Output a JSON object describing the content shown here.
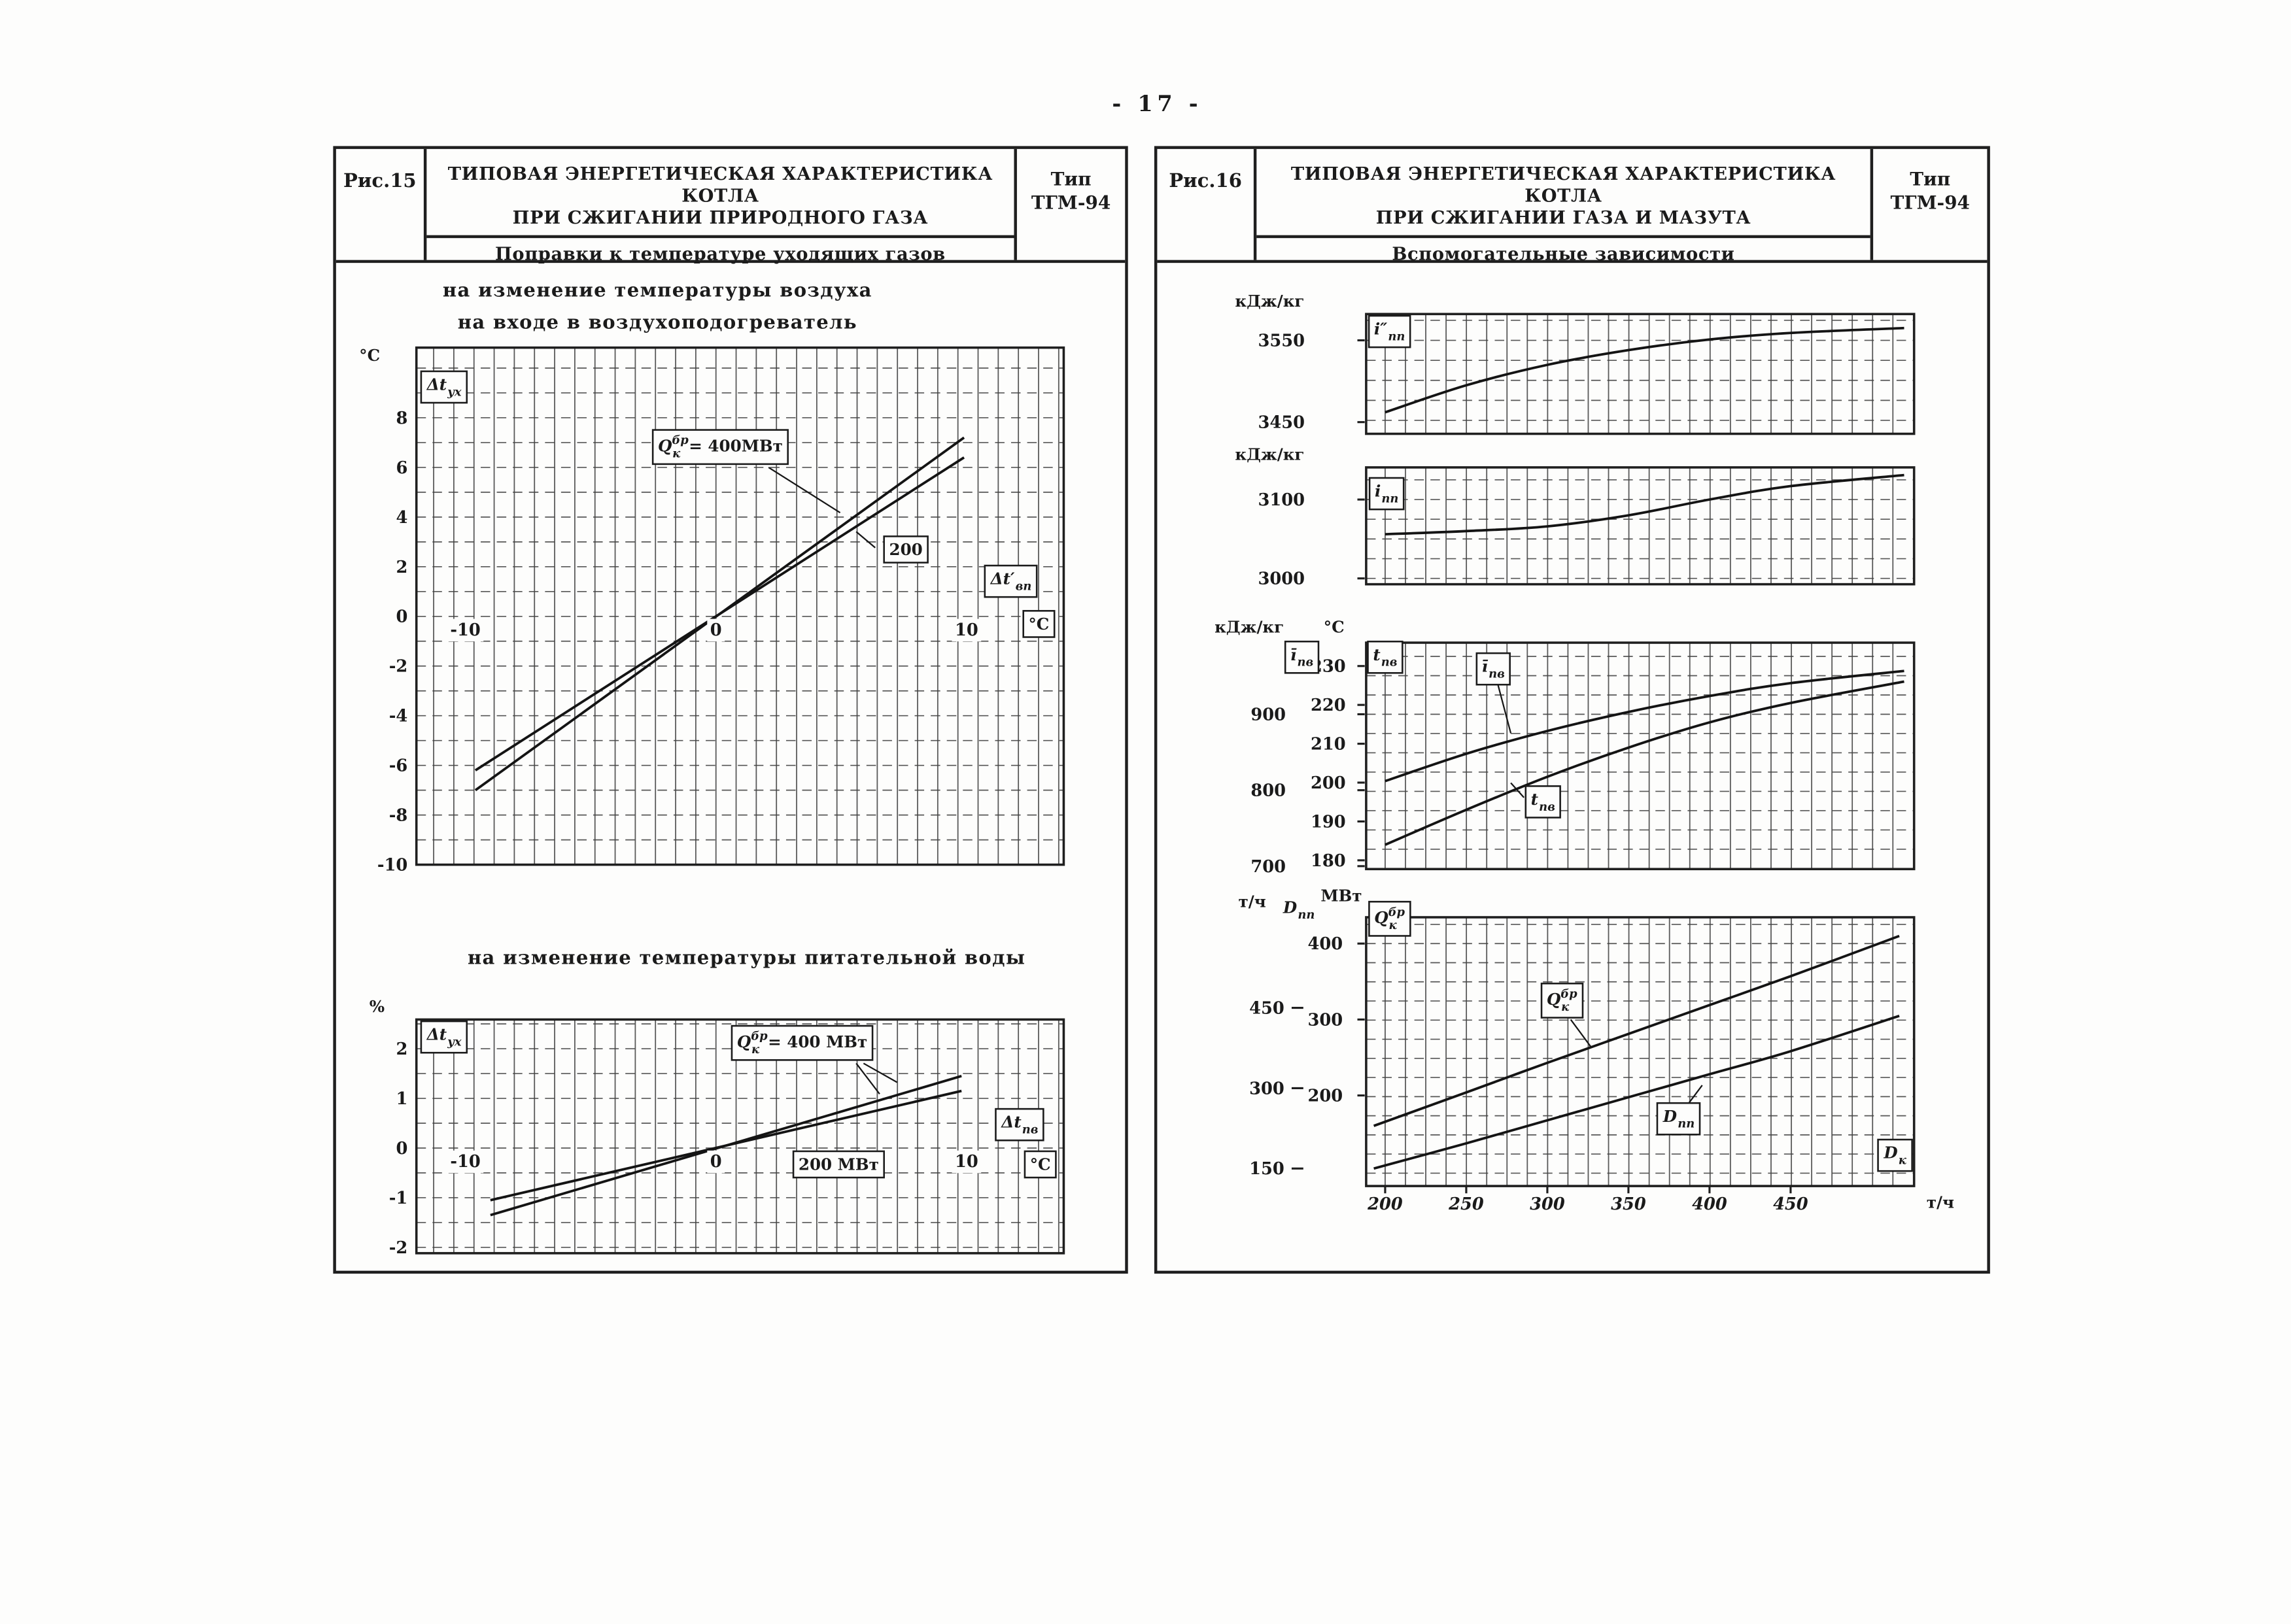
{
  "page": {
    "number": "- 17 -"
  },
  "figures": [
    {
      "id": "fig15",
      "label": "Рис.15",
      "title1": "ТИПОВАЯ ЭНЕРГЕТИЧЕСКАЯ ХАРАКТЕРИСТИКА КОТЛА",
      "title2": "ПРИ СЖИГАНИИ ПРИРОДНОГО ГАЗА",
      "subtitle": "Поправки к температуре уходящих газов",
      "type_label": "Тип",
      "type_value": "ТГМ-94",
      "section_titles": [
        "на изменение температуры воздуха",
        "на входе в воздухоподогреватель",
        "на изменение температуры питательной воды"
      ]
    },
    {
      "id": "fig16",
      "label": "Рис.16",
      "title1": "ТИПОВАЯ ЭНЕРГЕТИЧЕСКАЯ ХАРАКТЕРИСТИКА КОТЛА",
      "title2": "ПРИ СЖИГАНИИ ГАЗА И МАЗУТА",
      "subtitle": "Вспомогательные зависимости",
      "type_label": "Тип",
      "type_value": "ТГМ-94"
    }
  ],
  "chart_data": [
    {
      "id": "fig15_top",
      "type": "line",
      "title": "на изменение температуры воздуха на входе в воздухоподогреватель",
      "xlabel": "Δt′вп, °C",
      "ylabel": "Δtух, °C",
      "xlim": [
        -11.9,
        13.9
      ],
      "ylim": [
        -10,
        10.8
      ],
      "yticks": [
        8,
        6,
        4,
        2,
        0,
        -2,
        -4,
        -6,
        -8,
        -10
      ],
      "xticks": [
        -10,
        0,
        10
      ],
      "series": [
        {
          "name": "Qк бр = 400 МВт",
          "points": [
            [
              -9.6,
              -7.0
            ],
            [
              9.9,
              7.2
            ]
          ]
        },
        {
          "name": "200 МВт",
          "points": [
            [
              -9.6,
              -6.2
            ],
            [
              9.9,
              6.4
            ]
          ]
        }
      ],
      "annotations": {
        "yunit": {
          "text": "°C"
        },
        "ylab": {
          "text": "Δt",
          "sub": "ух",
          "boxed": true
        },
        "q400": {
          "text": "Q",
          "sup": "бр",
          "sub": "к",
          "suffix": " = 400МВт",
          "boxed": true
        },
        "q200": {
          "text": "200",
          "boxed": true
        },
        "xlab": {
          "text": "Δt′",
          "sub": "вп",
          "boxed": true
        },
        "xunit": {
          "text": "°C",
          "boxed": true
        }
      }
    },
    {
      "id": "fig15_bot",
      "type": "line",
      "title": "на изменение температуры питательной воды",
      "xlabel": "Δtпв, °C",
      "ylabel": "Δtух, %",
      "xlim": [
        -11.9,
        13.9
      ],
      "ylim": [
        -2.6,
        2.6
      ],
      "yticks": [
        2,
        1,
        0,
        -1,
        -2
      ],
      "xticks": [
        -10,
        0,
        10
      ],
      "series": [
        {
          "name": "Qк бр = 400 МВт",
          "points": [
            [
              -9,
              -1.35
            ],
            [
              9.8,
              1.45
            ]
          ]
        },
        {
          "name": "200 МВт",
          "points": [
            [
              -9,
              -1.05
            ],
            [
              9.8,
              1.15
            ]
          ]
        }
      ],
      "annotations": {
        "yunit": {
          "text": "%"
        },
        "ylab": {
          "text": "Δt",
          "sub": "ух",
          "boxed": true
        },
        "q400": {
          "text": "Q",
          "sup": "бр",
          "sub": "к",
          "suffix": " = 400 МВт",
          "boxed": true
        },
        "mw200": {
          "text": "200 МВт",
          "boxed": true
        },
        "xlab": {
          "text": "Δt",
          "sub": "пв",
          "boxed": true
        },
        "xunit": {
          "text": "°C",
          "boxed": true
        }
      }
    },
    {
      "id": "fig16_a",
      "type": "line",
      "xlabel": "Dк, т/ч",
      "ylabel": "i″пп, кДж/кг",
      "xlim": [
        188,
        526
      ],
      "ylim": [
        3435,
        3585
      ],
      "yticks": [
        3550,
        3450
      ],
      "series": [
        {
          "name": "i″пп",
          "smooth": true,
          "points": [
            [
              200,
              3462
            ],
            [
              250,
              3495
            ],
            [
              300,
              3520
            ],
            [
              350,
              3538
            ],
            [
              400,
              3551
            ],
            [
              450,
              3559
            ],
            [
              520,
              3565
            ]
          ]
        }
      ],
      "annotations": {
        "yunit": {
          "text": "кДж/кг"
        },
        "lab": {
          "text": "i″",
          "sub": "пп",
          "boxed": true
        }
      }
    },
    {
      "id": "fig16_b",
      "type": "line",
      "xlabel": "Dк, т/ч",
      "ylabel": "iпп, кДж/кг",
      "xlim": [
        188,
        526
      ],
      "ylim": [
        2995,
        3145
      ],
      "yticks": [
        3100,
        3000
      ],
      "series": [
        {
          "name": "iпп",
          "smooth": true,
          "points": [
            [
              200,
              3056
            ],
            [
              250,
              3060
            ],
            [
              300,
              3066
            ],
            [
              350,
              3080
            ],
            [
              400,
              3100
            ],
            [
              450,
              3117
            ],
            [
              520,
              3131
            ]
          ]
        }
      ],
      "annotations": {
        "yunit": {
          "text": "кДж/кг"
        },
        "lab": {
          "text": "i",
          "sub": "пп",
          "boxed": true
        }
      }
    },
    {
      "id": "fig16_c",
      "type": "line",
      "xlabel": "Dк, т/ч",
      "ylabel": "īпв, кДж/кг",
      "y2label": "tпв, °C",
      "xlim": [
        188,
        526
      ],
      "yticks": [
        900,
        800,
        700
      ],
      "y2ticks": [
        230,
        220,
        210,
        200,
        190,
        180
      ],
      "series": [
        {
          "name": "īпв (кДж/кг)",
          "scale": "y",
          "smooth": true,
          "points": [
            [
              200,
              812
            ],
            [
              250,
              848
            ],
            [
              300,
              878
            ],
            [
              350,
              903
            ],
            [
              400,
              924
            ],
            [
              450,
              941
            ],
            [
              520,
              957
            ]
          ]
        },
        {
          "name": "tпв (°C)",
          "scale": "y2",
          "smooth": true,
          "points": [
            [
              200,
              184
            ],
            [
              250,
              193
            ],
            [
              300,
              201.5
            ],
            [
              350,
              209
            ],
            [
              400,
              215.5
            ],
            [
              450,
              220.5
            ],
            [
              520,
              226
            ]
          ]
        }
      ],
      "annotations": {
        "yunit": {
          "text": "кДж/кг"
        },
        "y2unit": {
          "text": "°C"
        },
        "ylab": {
          "text": "ī",
          "sub": "пв",
          "boxed": true
        },
        "y2lab": {
          "text": "t",
          "sub": "пв",
          "boxed": true
        },
        "imid": {
          "text": "ī",
          "sub": "пв",
          "boxed": true
        },
        "tmid": {
          "text": "t",
          "sub": "пв",
          "boxed": true
        }
      }
    },
    {
      "id": "fig16_d",
      "type": "line",
      "xlabel": "Dк, т/ч",
      "ylabel": "Qк бр, МВт",
      "y2label": "Dпп, т/ч",
      "xlim": [
        188,
        526
      ],
      "yticks": [
        400,
        300,
        200
      ],
      "y2ticks": [
        450,
        300,
        150
      ],
      "xticks": [
        200,
        250,
        300,
        350,
        400,
        450
      ],
      "series": [
        {
          "name": "Qк бр (МВт)",
          "scale": "y",
          "smooth": true,
          "points": [
            [
              193,
              160
            ],
            [
              250,
              204
            ],
            [
              300,
              243
            ],
            [
              350,
              281
            ],
            [
              400,
              319
            ],
            [
              450,
              357
            ],
            [
              517,
              410
            ]
          ]
        },
        {
          "name": "Dпп (т/ч)",
          "scale": "y2",
          "smooth": true,
          "points": [
            [
              193,
              150
            ],
            [
              250,
              197
            ],
            [
              300,
              240
            ],
            [
              350,
              283
            ],
            [
              400,
              326
            ],
            [
              450,
              369
            ],
            [
              517,
              435
            ]
          ]
        }
      ],
      "annotations": {
        "y2unit": {
          "text": "т/ч"
        },
        "dhdr": {
          "text": "D",
          "sub": "пп"
        },
        "yunit": {
          "text": "МВт"
        },
        "qhdr": {
          "text": "Q",
          "sup": "бр",
          "sub": "к",
          "boxed": true
        },
        "qmid": {
          "text": "Q",
          "sup": "бр",
          "sub": "к",
          "boxed": true
        },
        "dmid": {
          "text": "D",
          "sub": "пп",
          "boxed": true
        },
        "dk": {
          "text": "D",
          "sub": "к",
          "boxed": true
        },
        "xunit": {
          "text": "т/ч"
        }
      }
    }
  ]
}
